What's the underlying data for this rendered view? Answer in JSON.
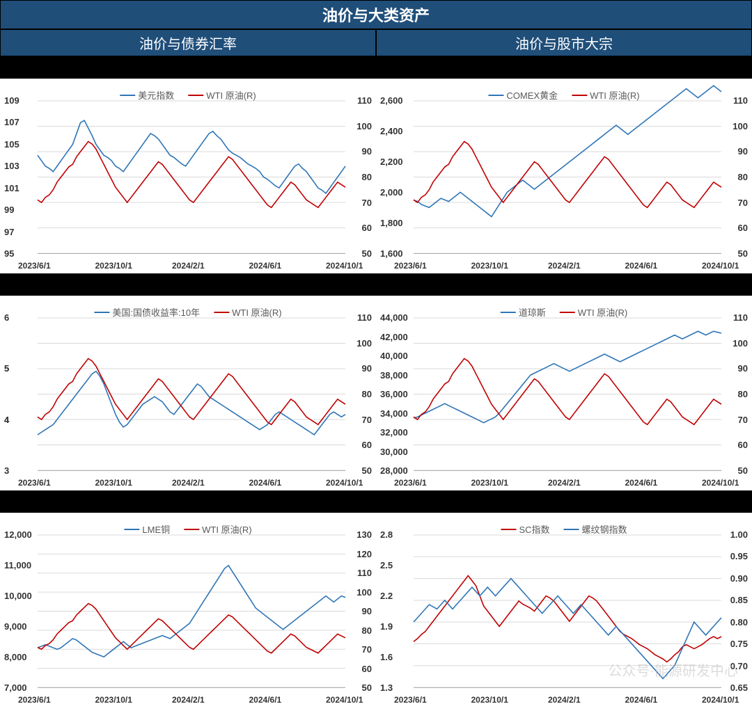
{
  "title": "油价与大类资产",
  "subtitles": [
    "油价与债券汇率",
    "油价与股市大宗"
  ],
  "watermark": "公众号·能源研发中心",
  "colors": {
    "primary": "#2e75b6",
    "secondary": "#c00000",
    "header_bg": "#1f4e79",
    "grid": "#d9d9d9",
    "text": "#333333",
    "legend_text": "#595959"
  },
  "x_axis": [
    "2023/6/1",
    "2023/10/1",
    "2024/2/1",
    "2024/6/1",
    "2024/10/1"
  ],
  "wti_data": [
    71,
    70,
    72,
    73,
    75,
    78,
    80,
    82,
    84,
    85,
    88,
    90,
    92,
    94,
    93,
    91,
    88,
    85,
    82,
    79,
    76,
    74,
    72,
    70,
    72,
    74,
    76,
    78,
    80,
    82,
    84,
    86,
    85,
    83,
    81,
    79,
    77,
    75,
    73,
    71,
    70,
    72,
    74,
    76,
    78,
    80,
    82,
    84,
    86,
    88,
    87,
    85,
    83,
    81,
    79,
    77,
    75,
    73,
    71,
    69,
    68,
    70,
    72,
    74,
    76,
    78,
    77,
    75,
    73,
    71,
    70,
    69,
    68,
    70,
    72,
    74,
    76,
    78,
    77,
    76
  ],
  "charts": [
    {
      "id": "dxy",
      "legend_a": "美元指数",
      "legend_b": "WTI 原油(R)",
      "y_left": {
        "min": 95,
        "max": 109,
        "ticks": [
          95,
          97,
          99,
          101,
          103,
          105,
          107,
          109
        ]
      },
      "y_right": {
        "min": 50,
        "max": 110,
        "ticks": [
          50,
          60,
          70,
          80,
          90,
          100,
          110
        ]
      },
      "data_a": [
        104,
        103.5,
        103,
        102.8,
        102.5,
        103,
        103.5,
        104,
        104.5,
        105,
        106,
        107,
        107.2,
        106.5,
        105.8,
        105,
        104.5,
        104,
        103.8,
        103.5,
        103,
        102.8,
        102.5,
        103,
        103.5,
        104,
        104.5,
        105,
        105.5,
        106,
        105.8,
        105.5,
        105,
        104.5,
        104,
        103.8,
        103.5,
        103.2,
        103,
        103.5,
        104,
        104.5,
        105,
        105.5,
        106,
        106.2,
        105.8,
        105.5,
        105,
        104.5,
        104.2,
        104,
        103.8,
        103.5,
        103.2,
        103,
        102.8,
        102.5,
        102,
        101.8,
        101.5,
        101.2,
        101,
        101.5,
        102,
        102.5,
        103,
        103.2,
        102.8,
        102.5,
        102,
        101.5,
        101,
        100.8,
        100.5,
        101,
        101.5,
        102,
        102.5,
        103
      ],
      "line_width": 1.6
    },
    {
      "id": "gold",
      "legend_a": "COMEX黄金",
      "legend_b": "WTI 原油(R)",
      "y_left": {
        "min": 1600,
        "max": 2600,
        "ticks": [
          1600,
          1800,
          2000,
          2200,
          2400,
          2600
        ],
        "fmt": "comma"
      },
      "y_right": {
        "min": 50,
        "max": 110,
        "ticks": [
          50,
          60,
          70,
          80,
          90,
          100,
          110
        ]
      },
      "data_a": [
        1950,
        1940,
        1920,
        1910,
        1900,
        1920,
        1940,
        1960,
        1950,
        1940,
        1960,
        1980,
        2000,
        1980,
        1960,
        1940,
        1920,
        1900,
        1880,
        1860,
        1840,
        1880,
        1920,
        1960,
        2000,
        2020,
        2040,
        2060,
        2080,
        2060,
        2040,
        2020,
        2040,
        2060,
        2080,
        2100,
        2120,
        2140,
        2160,
        2180,
        2200,
        2220,
        2240,
        2260,
        2280,
        2300,
        2320,
        2340,
        2360,
        2380,
        2400,
        2420,
        2440,
        2420,
        2400,
        2380,
        2400,
        2420,
        2440,
        2460,
        2480,
        2500,
        2520,
        2540,
        2560,
        2580,
        2600,
        2620,
        2640,
        2660,
        2680,
        2660,
        2640,
        2620,
        2640,
        2660,
        2680,
        2700,
        2680,
        2660
      ],
      "line_width": 1.6
    },
    {
      "id": "ust10y",
      "legend_a": "美国:国债收益率:10年",
      "legend_b": "WTI 原油(R)",
      "y_left": {
        "min": 3,
        "max": 6,
        "ticks": [
          3,
          4,
          4,
          5,
          5,
          6
        ]
      },
      "y_right": {
        "min": 50,
        "max": 110,
        "ticks": [
          50,
          60,
          70,
          80,
          90,
          100,
          110
        ]
      },
      "data_a": [
        3.7,
        3.75,
        3.8,
        3.85,
        3.9,
        4.0,
        4.1,
        4.2,
        4.3,
        4.4,
        4.5,
        4.6,
        4.7,
        4.8,
        4.9,
        4.95,
        4.85,
        4.7,
        4.5,
        4.3,
        4.1,
        3.95,
        3.85,
        3.9,
        4.0,
        4.1,
        4.2,
        4.3,
        4.35,
        4.4,
        4.45,
        4.4,
        4.35,
        4.25,
        4.15,
        4.1,
        4.2,
        4.3,
        4.4,
        4.5,
        4.6,
        4.7,
        4.65,
        4.55,
        4.45,
        4.4,
        4.35,
        4.3,
        4.25,
        4.2,
        4.15,
        4.1,
        4.05,
        4.0,
        3.95,
        3.9,
        3.85,
        3.8,
        3.85,
        3.9,
        4.0,
        4.1,
        4.15,
        4.1,
        4.05,
        4.0,
        3.95,
        3.9,
        3.85,
        3.8,
        3.75,
        3.7,
        3.8,
        3.9,
        4.0,
        4.1,
        4.15,
        4.1,
        4.05,
        4.1
      ],
      "line_width": 1.6
    },
    {
      "id": "dji",
      "legend_a": "道琼斯",
      "legend_b": "WTI 原油(R)",
      "y_left": {
        "min": 28000,
        "max": 44000,
        "ticks": [
          28000,
          30000,
          32000,
          34000,
          36000,
          38000,
          40000,
          42000,
          44000
        ],
        "fmt": "comma"
      },
      "y_right": {
        "min": 50,
        "max": 110,
        "ticks": [
          50,
          60,
          70,
          80,
          90,
          100,
          110
        ]
      },
      "data_a": [
        33500,
        33600,
        33800,
        34000,
        34200,
        34400,
        34600,
        34800,
        35000,
        34800,
        34600,
        34400,
        34200,
        34000,
        33800,
        33600,
        33400,
        33200,
        33000,
        33200,
        33400,
        33600,
        34000,
        34500,
        35000,
        35500,
        36000,
        36500,
        37000,
        37500,
        38000,
        38200,
        38400,
        38600,
        38800,
        39000,
        39200,
        39000,
        38800,
        38600,
        38400,
        38600,
        38800,
        39000,
        39200,
        39400,
        39600,
        39800,
        40000,
        40200,
        40000,
        39800,
        39600,
        39400,
        39600,
        39800,
        40000,
        40200,
        40400,
        40600,
        40800,
        41000,
        41200,
        41400,
        41600,
        41800,
        42000,
        42200,
        42000,
        41800,
        42000,
        42200,
        42400,
        42600,
        42400,
        42200,
        42400,
        42600,
        42500,
        42400
      ],
      "line_width": 1.6
    },
    {
      "id": "lme",
      "legend_a": "LME铜",
      "legend_b": "WTI 原油(R)",
      "y_left": {
        "min": 7000,
        "max": 12000,
        "ticks": [
          7000,
          8000,
          9000,
          10000,
          11000,
          12000
        ],
        "fmt": "comma"
      },
      "y_right": {
        "min": 50,
        "max": 130,
        "ticks": [
          50,
          60,
          70,
          80,
          90,
          100,
          110,
          120,
          130
        ]
      },
      "data_a": [
        8300,
        8350,
        8400,
        8350,
        8300,
        8250,
        8300,
        8400,
        8500,
        8600,
        8550,
        8450,
        8350,
        8250,
        8150,
        8100,
        8050,
        8000,
        8100,
        8200,
        8300,
        8400,
        8500,
        8400,
        8300,
        8350,
        8400,
        8450,
        8500,
        8550,
        8600,
        8650,
        8700,
        8650,
        8600,
        8700,
        8800,
        8900,
        9000,
        9100,
        9300,
        9500,
        9700,
        9900,
        10100,
        10300,
        10500,
        10700,
        10900,
        11000,
        10800,
        10600,
        10400,
        10200,
        10000,
        9800,
        9600,
        9500,
        9400,
        9300,
        9200,
        9100,
        9000,
        8900,
        9000,
        9100,
        9200,
        9300,
        9400,
        9500,
        9600,
        9700,
        9800,
        9900,
        10000,
        9900,
        9800,
        9900,
        10000,
        9950
      ],
      "line_width": 1.6
    },
    {
      "id": "steel",
      "legend_a": "SC指数",
      "legend_b": "螺纹钢指数",
      "legend_a_color": "secondary",
      "legend_b_color": "primary",
      "y_left": {
        "min": 1.3,
        "max": 2.8,
        "ticks": [
          1.3,
          1.6,
          1.9,
          2.2,
          2.5,
          2.8
        ]
      },
      "y_right": {
        "min": 0.65,
        "max": 1.0,
        "ticks": [
          0.65,
          0.7,
          0.75,
          0.8,
          0.85,
          0.9,
          0.95,
          1.0
        ],
        "decimals": 2
      },
      "data_a": [
        1.75,
        1.78,
        1.82,
        1.85,
        1.9,
        1.95,
        2.0,
        2.05,
        2.1,
        2.15,
        2.2,
        2.25,
        2.3,
        2.35,
        2.4,
        2.35,
        2.3,
        2.2,
        2.1,
        2.05,
        2.0,
        1.95,
        1.9,
        1.95,
        2.0,
        2.05,
        2.1,
        2.15,
        2.12,
        2.1,
        2.08,
        2.05,
        2.1,
        2.15,
        2.2,
        2.18,
        2.15,
        2.1,
        2.05,
        2.0,
        1.95,
        2.0,
        2.05,
        2.1,
        2.15,
        2.2,
        2.18,
        2.15,
        2.1,
        2.05,
        2.0,
        1.95,
        1.9,
        1.85,
        1.82,
        1.8,
        1.78,
        1.75,
        1.72,
        1.7,
        1.68,
        1.65,
        1.62,
        1.6,
        1.58,
        1.55,
        1.58,
        1.62,
        1.65,
        1.7,
        1.72,
        1.7,
        1.68,
        1.7,
        1.72,
        1.75,
        1.78,
        1.8,
        1.78,
        1.8
      ],
      "data_b": [
        0.8,
        0.81,
        0.82,
        0.83,
        0.84,
        0.835,
        0.83,
        0.84,
        0.85,
        0.84,
        0.83,
        0.84,
        0.85,
        0.86,
        0.87,
        0.88,
        0.87,
        0.86,
        0.87,
        0.88,
        0.87,
        0.86,
        0.87,
        0.88,
        0.89,
        0.9,
        0.89,
        0.88,
        0.87,
        0.86,
        0.85,
        0.84,
        0.83,
        0.82,
        0.83,
        0.84,
        0.85,
        0.86,
        0.85,
        0.84,
        0.83,
        0.82,
        0.83,
        0.84,
        0.83,
        0.82,
        0.81,
        0.8,
        0.79,
        0.78,
        0.77,
        0.78,
        0.79,
        0.78,
        0.77,
        0.76,
        0.75,
        0.74,
        0.73,
        0.72,
        0.71,
        0.7,
        0.69,
        0.68,
        0.67,
        0.68,
        0.69,
        0.7,
        0.72,
        0.74,
        0.76,
        0.78,
        0.8,
        0.79,
        0.78,
        0.77,
        0.78,
        0.79,
        0.8,
        0.81
      ],
      "line_width": 1.6
    }
  ]
}
